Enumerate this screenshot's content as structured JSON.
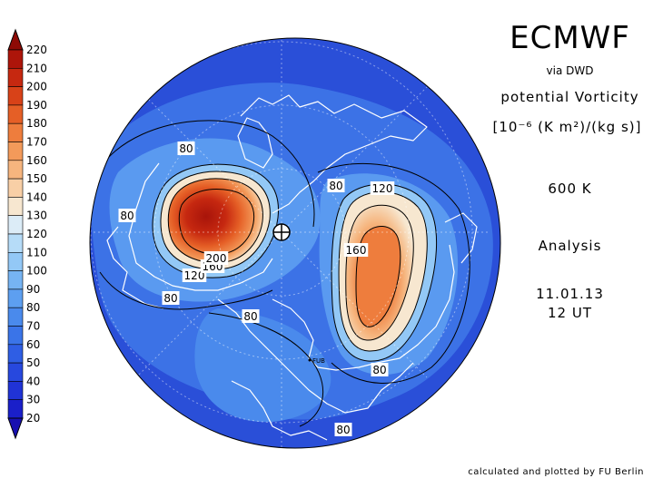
{
  "title": "ECMWF",
  "subtitle": "via DWD",
  "quantity": "potential Vorticity",
  "units": "[10⁻⁶ (K m²)/(kg s)]",
  "level": "600 K",
  "product": "Analysis",
  "date": "11.01.13",
  "time": "12 UT",
  "credit": "calculated and plotted by FU Berlin",
  "station_label": "FUB",
  "pole_marker_icon": "crosshair-circle-icon",
  "colorbar": {
    "levels": [
      "20",
      "30",
      "40",
      "50",
      "60",
      "70",
      "80",
      "90",
      "100",
      "110",
      "120",
      "130",
      "140",
      "150",
      "160",
      "170",
      "180",
      "190",
      "200",
      "210",
      "220"
    ],
    "colors": [
      "#1a1fc9",
      "#2033d6",
      "#2748de",
      "#2f5ee4",
      "#3a74e8",
      "#4a8aec",
      "#5d9ff0",
      "#76b4f3",
      "#93c8f6",
      "#b6dcf8",
      "#dcecf7",
      "#f7e7d0",
      "#f8cfa6",
      "#f6b57e",
      "#f39a5a",
      "#ee7d3d",
      "#e55f26",
      "#d84218",
      "#c62810",
      "#ad150a"
    ],
    "under_color": "#1810b0",
    "over_color": "#8e0a05"
  },
  "contour_labels": [
    {
      "text": "80"
    },
    {
      "text": "80"
    },
    {
      "text": "80"
    },
    {
      "text": "80"
    },
    {
      "text": "80"
    },
    {
      "text": "80"
    },
    {
      "text": "80"
    },
    {
      "text": "120"
    },
    {
      "text": "120"
    },
    {
      "text": "160"
    },
    {
      "text": "160"
    },
    {
      "text": "200"
    }
  ]
}
